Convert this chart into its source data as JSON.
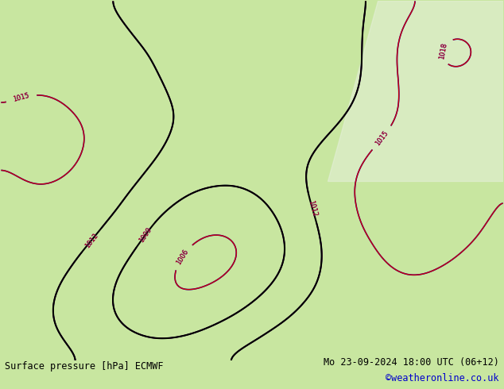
{
  "title_left": "Surface pressure [hPa] ECMWF",
  "title_right": "Mo 23-09-2024 18:00 UTC (06+12)",
  "watermark": "©weatheronline.co.uk",
  "bg_color": "#c8e6a0",
  "bg_color2": "#d4edb0",
  "water_color": "#ffffff",
  "border_color": "#a0b870",
  "contour_color_blue": "#0000cc",
  "contour_color_red": "#cc0000",
  "contour_color_black": "#000000",
  "text_color_bottom": "#000000",
  "watermark_color": "#0000cc",
  "figsize": [
    6.34,
    4.9
  ],
  "dpi": 100
}
